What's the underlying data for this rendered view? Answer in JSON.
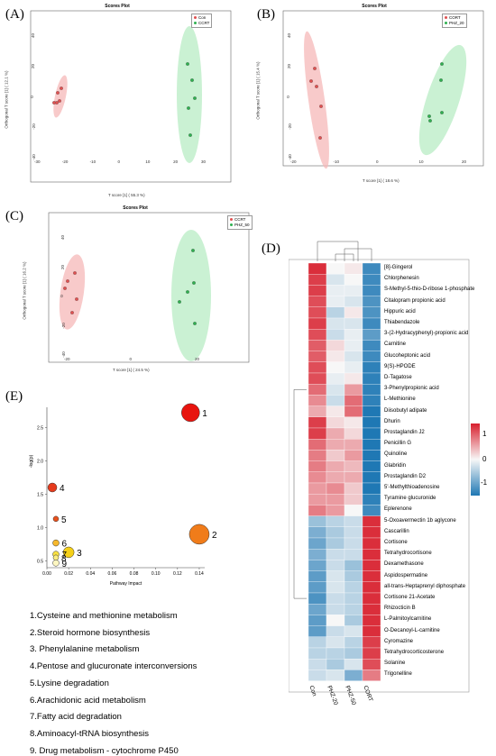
{
  "panels": {
    "A": {
      "letter": "(A)",
      "title": "Scores Plot",
      "legend": [
        "Con",
        "CCRT"
      ],
      "xlabel": "T score [1] ( 55.3 %)",
      "ylabel": "Orthogonal T score [1] ( 12.1 %)",
      "xticks": [
        "-30",
        "-20",
        "-10",
        "0",
        "10",
        "20",
        "30"
      ],
      "yticks": [
        "40",
        "20",
        "0",
        "-20",
        "-40"
      ]
    },
    "B": {
      "letter": "(B)",
      "title": "Scores Plot",
      "legend": [
        "CORT",
        "PHZ_20"
      ],
      "xlabel": "T score [1] ( 18.6 %)",
      "ylabel": "Orthogonal T score [1] ( 15.4 %)",
      "xticks": [
        "-20",
        "-10",
        "0",
        "10",
        "20"
      ],
      "yticks": [
        "40",
        "20",
        "0",
        "-20",
        "-40"
      ]
    },
    "C": {
      "letter": "(C)",
      "title": "Scores Plot",
      "legend": [
        "CCRT",
        "PHZ_50"
      ],
      "xlabel": "T score [1] ( 24.5 %)",
      "ylabel": "Orthogonal T score [1] ( 16.2 %)",
      "xticks": [
        "-20",
        "0",
        "20"
      ],
      "yticks": [
        "40",
        "20",
        "0",
        "-20",
        "-40"
      ]
    },
    "D": {
      "letter": "(D)"
    },
    "E": {
      "letter": "(E)"
    }
  },
  "colors": {
    "group1": "#f6b8b8",
    "group1_point": "#e05050",
    "group2": "#b8ecc4",
    "group2_point": "#2fb050",
    "hm_high": "#d81f2d",
    "hm_mid": "#f7f7f7",
    "hm_low": "#1f78b4"
  },
  "chart_data": [
    {
      "type": "scatter",
      "panel": "E",
      "xlabel": "Pathway Impact",
      "ylabel": "-log(p)",
      "xticks": [
        "0.00",
        "0.02",
        "0.04",
        "0.06",
        "0.08",
        "0.10",
        "0.12",
        "0.14"
      ],
      "yticks": [
        "0.5",
        "1.0",
        "1.5",
        "2.0",
        "2.5"
      ],
      "xlim": [
        0,
        0.145
      ],
      "ylim": [
        0.4,
        2.8
      ],
      "points": [
        {
          "label": "1",
          "x": 0.132,
          "y": 2.72,
          "size": 10,
          "color": "#e8140e"
        },
        {
          "label": "2",
          "x": 0.14,
          "y": 0.9,
          "size": 11,
          "color": "#f07c1a"
        },
        {
          "label": "3",
          "x": 0.02,
          "y": 0.63,
          "size": 6,
          "color": "#f5d018"
        },
        {
          "label": "4",
          "x": 0.005,
          "y": 1.6,
          "size": 5,
          "color": "#e63a1c"
        },
        {
          "label": "5",
          "x": 0.0,
          "y": 1.13,
          "size": 3,
          "color": "#e8521e"
        },
        {
          "label": "6",
          "x": 0.0,
          "y": 0.77,
          "size": 3.5,
          "color": "#f6b82c"
        },
        {
          "label": "7",
          "x": 0.0,
          "y": 0.6,
          "size": 3.5,
          "color": "#f8e040"
        },
        {
          "label": "8",
          "x": 0.0,
          "y": 0.55,
          "size": 3,
          "color": "#fbec80"
        },
        {
          "label": "9",
          "x": 0.0,
          "y": 0.47,
          "size": 3.5,
          "color": "#fdf6c0"
        }
      ]
    },
    {
      "type": "heatmap",
      "panel": "D",
      "columns": [
        "Con",
        "PHZ-20",
        "PHZ-50",
        "CORT"
      ],
      "rows": [
        "[8]-Gingerol",
        "Chlorphenesin",
        "S-Methyl-5-thio-D-ribose 1-phosphate",
        "Citalopram propionic acid",
        "Hippuric acid",
        "Thiabendazole",
        "3-(2-Hydracyphenyl)-propionic acid",
        "Carnitine",
        "Glucoheptonic acid",
        "9(S)-HPODE",
        "D-Tagatose",
        "3-Phenylpropionic acid",
        "L-Methionine",
        "Diisobutyl adipate",
        "Dhurin",
        "Prostaglandin J2",
        "Penicillin G",
        "Quinoline",
        "Glabridin",
        "Prostaglandin D2",
        "5'-Methylthioadenosine",
        "Tyramine glucuronide",
        "Eplerenone",
        "5-Oxoavermectin 1b aglycone",
        "Cascarillin",
        "Cortisone",
        "Tetrahydrocortisone",
        "Dexamethasone",
        "Aspidospermatine",
        "all-trans-Heptaprenyl diphosphate",
        "Cortisone 21-Acetate",
        "Rhizocticin B",
        "L-Palmitoylcarnitine",
        "O-Decanoyl-L-carnitine",
        "Cyromazine",
        "Tetrahydrocorticosterone",
        "Solanine",
        "Trigonelline"
      ],
      "values": [
        [
          1.3,
          0.0,
          0.1,
          -1.2
        ],
        [
          1.2,
          -0.2,
          0.0,
          -1.2
        ],
        [
          1.2,
          -0.1,
          -0.1,
          -1.2
        ],
        [
          1.1,
          -0.1,
          -0.2,
          -1.1
        ],
        [
          1.1,
          -0.4,
          0.1,
          -1.1
        ],
        [
          1.2,
          -0.2,
          -0.2,
          -1.2
        ],
        [
          1.1,
          -0.3,
          -0.1,
          -1.0
        ],
        [
          1.0,
          0.2,
          -0.1,
          -1.2
        ],
        [
          1.0,
          0.1,
          -0.2,
          -1.2
        ],
        [
          1.1,
          0.0,
          -0.1,
          -1.3
        ],
        [
          1.1,
          -0.1,
          0.1,
          -1.3
        ],
        [
          0.9,
          -0.2,
          0.6,
          -1.3
        ],
        [
          0.7,
          -0.3,
          0.9,
          -1.3
        ],
        [
          0.5,
          0.1,
          0.9,
          -1.4
        ],
        [
          1.2,
          0.2,
          0.1,
          -1.4
        ],
        [
          1.2,
          0.5,
          0.2,
          -1.4
        ],
        [
          0.9,
          0.5,
          0.5,
          -1.4
        ],
        [
          0.8,
          0.3,
          0.6,
          -1.4
        ],
        [
          0.8,
          0.5,
          0.4,
          -1.4
        ],
        [
          0.7,
          0.5,
          0.5,
          -1.4
        ],
        [
          0.6,
          0.7,
          0.3,
          -1.4
        ],
        [
          0.6,
          0.6,
          0.3,
          -1.3
        ],
        [
          0.8,
          0.6,
          0.0,
          -1.2
        ],
        [
          -0.6,
          -0.4,
          -0.3,
          1.3
        ],
        [
          -0.8,
          -0.5,
          -0.3,
          1.3
        ],
        [
          -0.9,
          -0.5,
          -0.3,
          1.3
        ],
        [
          -0.8,
          -0.3,
          -0.3,
          1.3
        ],
        [
          -0.9,
          -0.3,
          -0.6,
          1.3
        ],
        [
          -1.0,
          -0.2,
          -0.5,
          1.3
        ],
        [
          -1.0,
          -0.2,
          -0.4,
          1.3
        ],
        [
          -1.1,
          -0.3,
          -0.4,
          1.3
        ],
        [
          -0.9,
          -0.3,
          -0.4,
          1.3
        ],
        [
          -1.0,
          0.0,
          -0.5,
          1.3
        ],
        [
          -1.0,
          -0.3,
          -0.2,
          1.3
        ],
        [
          -0.4,
          -0.2,
          -0.4,
          1.2
        ],
        [
          -0.4,
          -0.4,
          -0.5,
          1.2
        ],
        [
          -0.3,
          -0.5,
          -0.2,
          1.1
        ],
        [
          -0.3,
          -0.2,
          -0.8,
          0.8
        ]
      ],
      "colorbar_ticks": [
        "1",
        "0",
        "-1"
      ]
    }
  ],
  "pathways": [
    "1.Cysteine and methionine metabolism",
    "2.Steroid hormone biosynthesis",
    "3. Phenylalanine metabolism",
    "4.Pentose and glucuronate interconversions",
    "5.Lysine degradation",
    "6.Arachidonic acid metabolism",
    "7.Fatty acid degradation",
    "8.Aminoacyl-tRNA biosynthesis",
    "9. Drug metabolism - cytochrome P450"
  ]
}
